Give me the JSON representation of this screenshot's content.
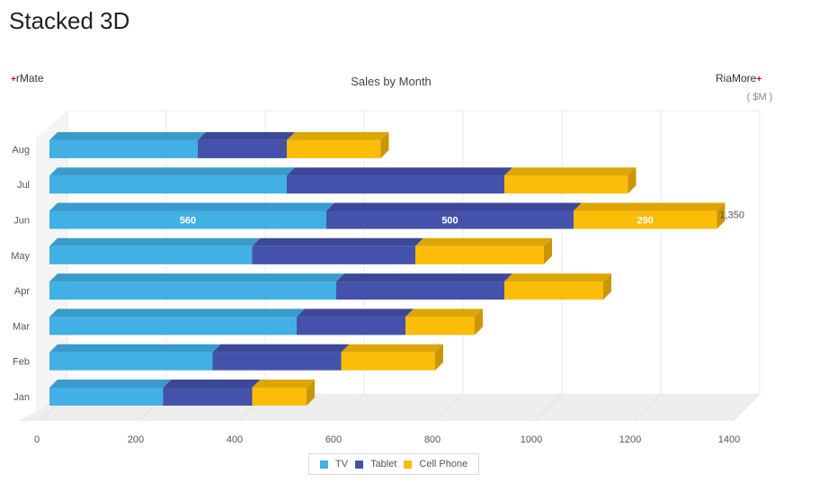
{
  "page": {
    "title": "Stacked 3D"
  },
  "branding": {
    "left": "rMate",
    "right": "RiaMore",
    "mark": "+"
  },
  "chart_data": {
    "type": "bar",
    "orientation": "horizontal",
    "stacked": true,
    "title": "Sales by Month",
    "unit_label": "( $M )",
    "categories": [
      "Jan",
      "Feb",
      "Mar",
      "Apr",
      "May",
      "Jun",
      "Jul",
      "Aug"
    ],
    "series": [
      {
        "name": "TV",
        "color": "#41b0e4",
        "values": [
          230,
          330,
          500,
          580,
          410,
          560,
          480,
          300
        ]
      },
      {
        "name": "Tablet",
        "color": "#4452ac",
        "values": [
          180,
          260,
          220,
          340,
          330,
          500,
          440,
          180
        ]
      },
      {
        "name": "Cell Phone",
        "color": "#fbbd08",
        "values": [
          110,
          190,
          140,
          200,
          260,
          290,
          250,
          190
        ]
      }
    ],
    "xlim": [
      0,
      1400
    ],
    "x_ticks": [
      0,
      200,
      400,
      600,
      800,
      1000,
      1200,
      1400
    ],
    "data_labels": {
      "Jun": {
        "TV": "560",
        "Tablet": "500",
        "Cell Phone": "290",
        "total": "1,350"
      }
    },
    "grid": true,
    "legend_position": "bottom"
  }
}
